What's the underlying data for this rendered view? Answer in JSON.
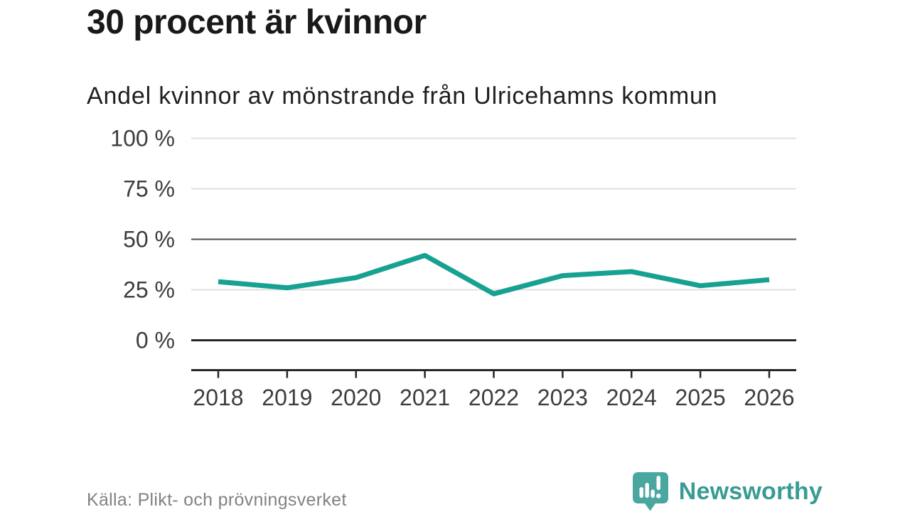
{
  "header": {
    "title": "30 procent är kvinnor",
    "subtitle": "Andel kvinnor av mönstrande från Ulricehamns kommun"
  },
  "footer": {
    "source": "Källa: Plikt- och prövningsverket",
    "brand": "Newsworthy"
  },
  "colors": {
    "line": "#16a191",
    "grid_light": "#e0e0e0",
    "grid_mid": "#4d4d4d",
    "axis": "#262626",
    "tick_text": "#3d3d3d",
    "title_text": "#191919",
    "source_text": "#828282",
    "brand_text": "#389b94",
    "brand_bubble": "#4aa7a0"
  },
  "chart_data": {
    "type": "line",
    "title": "30 procent är kvinnor",
    "subtitle": "Andel kvinnor av mönstrande från Ulricehamns kommun",
    "categories": [
      "2018",
      "2019",
      "2020",
      "2021",
      "2022",
      "2023",
      "2024",
      "2025",
      "2026"
    ],
    "series": [
      {
        "name": "Andel kvinnor av mönstrande",
        "values": [
          29,
          26,
          31,
          42,
          23,
          32,
          34,
          27,
          30
        ]
      }
    ],
    "unit": "%",
    "ylim": [
      0,
      100
    ],
    "yticks": [
      0,
      25,
      50,
      75,
      100
    ],
    "ytick_labels": [
      "0 %",
      "25 %",
      "50 %",
      "75 %",
      "100 %"
    ],
    "xlabel": "",
    "ylabel": "",
    "grid": "horizontal-only",
    "legend": "none",
    "emphasized_gridlines": [
      0,
      50
    ],
    "line_color": "#16a191"
  }
}
